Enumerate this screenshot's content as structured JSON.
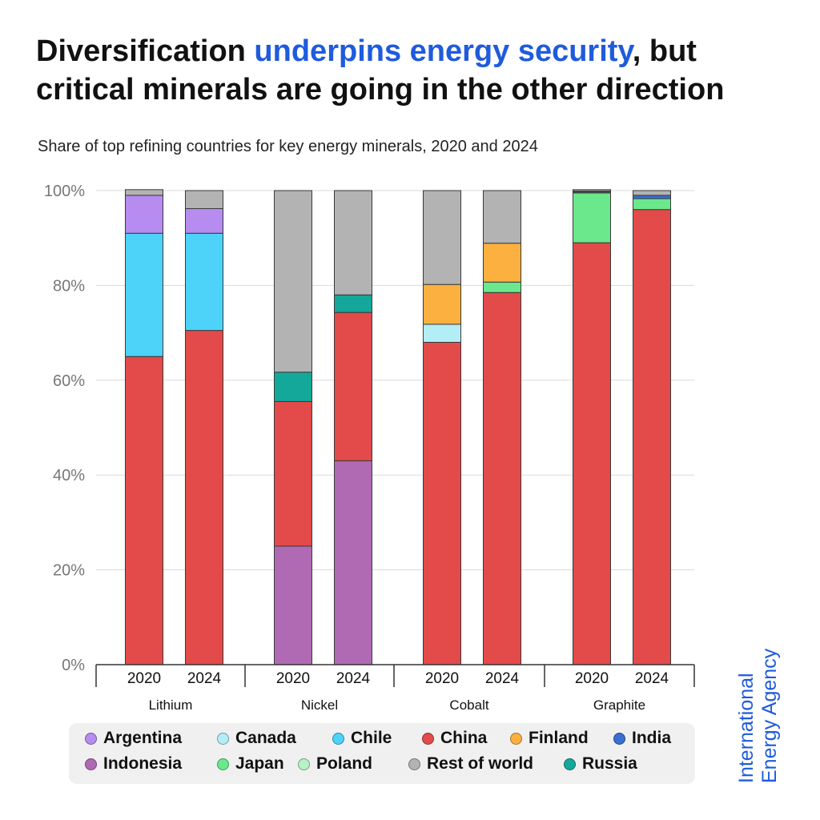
{
  "title": {
    "part1": "Diversification ",
    "accent": "underpins energy security",
    "part2": ", but critical minerals are going in the other direction",
    "accent_color": "#1f5bdc"
  },
  "subtitle": "Share of top refining countries for key energy minerals, 2020 and 2024",
  "brand": {
    "line1": "International",
    "line2": "Energy Agency"
  },
  "chart_data": {
    "type": "bar",
    "stacked": true,
    "ylim": [
      0,
      100
    ],
    "yticks": [
      "0%",
      "20%",
      "40%",
      "60%",
      "80%",
      "100%"
    ],
    "grid": true,
    "legend_position": "bottom",
    "groups": [
      {
        "name": "Lithium",
        "years": [
          "2020",
          "2024"
        ]
      },
      {
        "name": "Nickel",
        "years": [
          "2020",
          "2024"
        ]
      },
      {
        "name": "Cobalt",
        "years": [
          "2020",
          "2024"
        ]
      },
      {
        "name": "Graphite",
        "years": [
          "2020",
          "2024"
        ]
      }
    ],
    "series": [
      {
        "name": "Indonesia",
        "color": "#b06ab3",
        "values": [
          0,
          0,
          25,
          43,
          0,
          0,
          0,
          0
        ]
      },
      {
        "name": "China",
        "color": "#e34a4a",
        "values": [
          65,
          70.5,
          30.5,
          31.3,
          68,
          78.5,
          89,
          96
        ]
      },
      {
        "name": "Japan",
        "color": "#6be88c",
        "values": [
          0,
          0,
          0,
          0,
          0,
          2.2,
          10.5,
          2.3
        ]
      },
      {
        "name": "Poland",
        "color": "#b7f2c6",
        "values": [
          0,
          0,
          0,
          0,
          0,
          0,
          0.2,
          0
        ]
      },
      {
        "name": "Canada",
        "color": "#b3eef7",
        "values": [
          0,
          0,
          0,
          0,
          3.8,
          0,
          0,
          0
        ]
      },
      {
        "name": "Chile",
        "color": "#4dd3fa",
        "values": [
          26,
          20.5,
          0,
          0,
          0,
          0,
          0,
          0
        ]
      },
      {
        "name": "Finland",
        "color": "#fbb040",
        "values": [
          0,
          0,
          0,
          0,
          8.4,
          8.2,
          0,
          0
        ]
      },
      {
        "name": "Russia",
        "color": "#14a89b",
        "values": [
          0,
          0,
          6.2,
          3.7,
          0,
          0,
          0,
          0
        ]
      },
      {
        "name": "India",
        "color": "#3a6fd1",
        "values": [
          0,
          0,
          0,
          0,
          0,
          0,
          0.2,
          0.7
        ]
      },
      {
        "name": "Argentina",
        "color": "#b68cf0",
        "values": [
          8,
          5.2,
          0,
          0,
          0,
          0,
          0,
          0
        ]
      },
      {
        "name": "Rest of world",
        "color": "#b3b3b3",
        "values": [
          1.2,
          3.8,
          38.3,
          22,
          19.8,
          11.1,
          0.3,
          1
        ]
      }
    ]
  },
  "legend": {
    "row1": [
      {
        "label": "Argentina",
        "color": "#b68cf0"
      },
      {
        "label": "Canada",
        "color": "#b3eef7"
      },
      {
        "label": "Chile",
        "color": "#4dd3fa"
      },
      {
        "label": "China",
        "color": "#e34a4a"
      },
      {
        "label": "Finland",
        "color": "#fbb040"
      },
      {
        "label": "India",
        "color": "#3a6fd1"
      }
    ],
    "row2": [
      {
        "label": "Indonesia",
        "color": "#b06ab3"
      },
      {
        "label": "Japan",
        "color": "#6be88c"
      },
      {
        "label": "Poland",
        "color": "#b7f2c6"
      },
      {
        "label": "Rest of world",
        "color": "#b3b3b3"
      },
      {
        "label": "Russia",
        "color": "#14a89b"
      }
    ]
  }
}
